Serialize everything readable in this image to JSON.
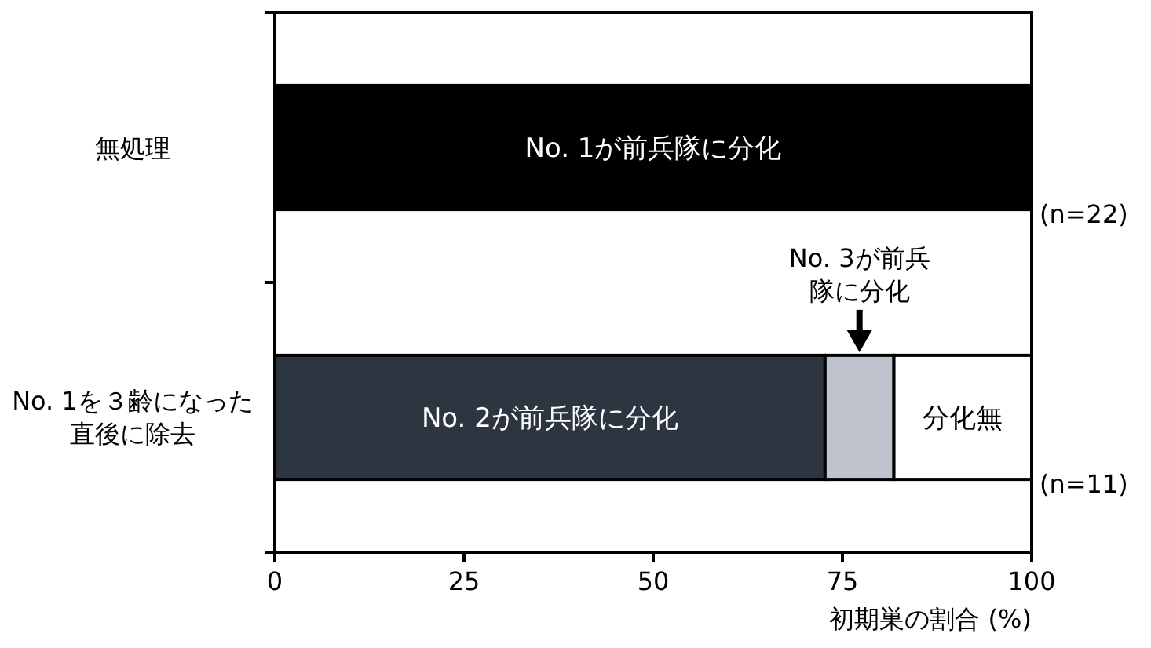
{
  "chart_data": {
    "type": "bar",
    "orientation": "horizontal",
    "stacked": true,
    "categories": [
      "無処理",
      "No. 1を３齢になった直後に除去"
    ],
    "series": [
      {
        "name": "No. 1が前兵隊に分化",
        "color": "#000000",
        "values": [
          100,
          null
        ]
      },
      {
        "name": "No. 2が前兵隊に分化",
        "color": "#2d3640",
        "values": [
          null,
          72.7
        ]
      },
      {
        "color": "#bec3cd",
        "values": [
          null,
          9.1
        ]
      },
      {
        "name": "分化無",
        "color": "#ffffff",
        "values": [
          null,
          18.2
        ]
      }
    ],
    "xlim": [
      0,
      100
    ],
    "xticks": [
      0,
      25,
      50,
      75,
      100
    ],
    "xlabel": "初期巣の割合 (%)",
    "annotations": [
      {
        "text": "(n=22)",
        "x": 100,
        "y": "無処理"
      },
      {
        "text": "(n=11)",
        "x": 100,
        "y": "No. 1を３齢になった直後に除去"
      },
      "No. 3が前兵隊に分化"
    ]
  }
}
